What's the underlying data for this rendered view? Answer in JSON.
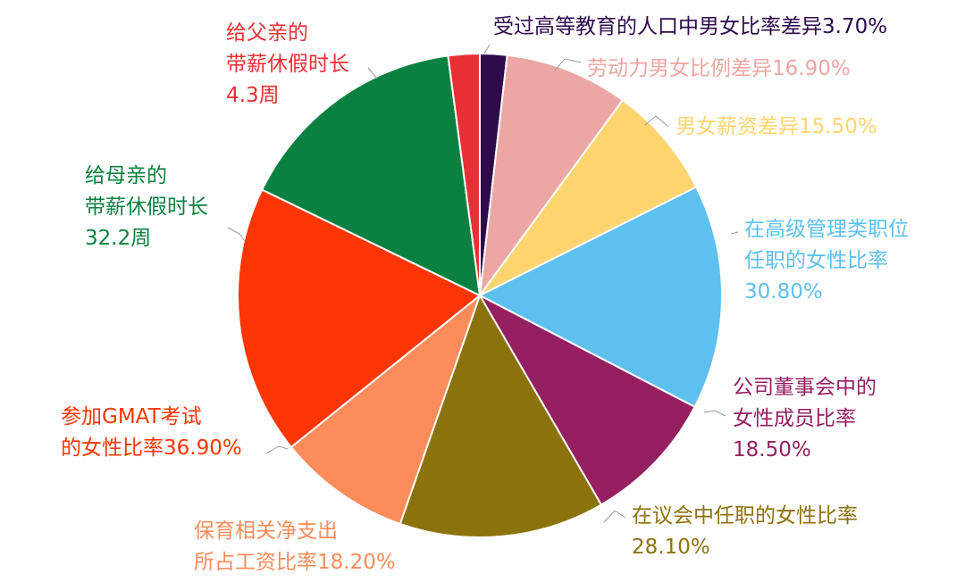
{
  "chart_data": {
    "type": "pie",
    "slices": [
      {
        "lines": [
          "受过高等教育的人口中男女比率差异3.70%"
        ],
        "value": 3.7,
        "color": "#2e0b4a"
      },
      {
        "lines": [
          "劳动力男女比例差异16.90%"
        ],
        "value": 16.9,
        "color": "#eca7a5"
      },
      {
        "lines": [
          "男女薪资差异15.50%"
        ],
        "value": 15.5,
        "color": "#fcd56f"
      },
      {
        "lines": [
          "在高级管理类职位",
          "任职的女性比率",
          "30.80%"
        ],
        "value": 30.8,
        "color": "#5ec0ee"
      },
      {
        "lines": [
          "公司董事会中的",
          "女性成员比率",
          "18.50%"
        ],
        "value": 18.5,
        "color": "#951f61"
      },
      {
        "lines": [
          "在议会中任职的女性比率",
          "28.10%"
        ],
        "value": 28.1,
        "color": "#8c720b"
      },
      {
        "lines": [
          "保育相关净支出",
          "所占工资比率18.20%"
        ],
        "value": 18.2,
        "color": "#fc8c5a"
      },
      {
        "lines": [
          "参加GMAT考试",
          "的女性比率36.90%"
        ],
        "value": 36.9,
        "color": "#fd3503"
      },
      {
        "lines": [
          "给母亲的",
          "带薪休假时长",
          "32.2周"
        ],
        "value": 32.2,
        "color": "#0a8140"
      },
      {
        "lines": [
          "给父亲的",
          "带薪休假时长",
          "4.3周"
        ],
        "value": 4.3,
        "color": "#e83034"
      }
    ]
  }
}
